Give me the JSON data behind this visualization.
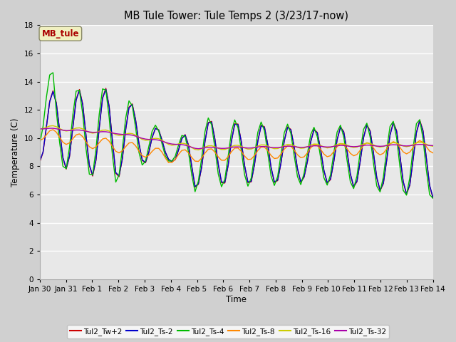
{
  "title": "MB Tule Tower: Tule Temps 2 (3/23/17-now)",
  "xlabel": "Time",
  "ylabel": "Temperature (C)",
  "ylim": [
    0,
    18
  ],
  "yticks": [
    0,
    2,
    4,
    6,
    8,
    10,
    12,
    14,
    16,
    18
  ],
  "legend_label": "MB_tule",
  "series_colors": {
    "Tul2_Tw+2": "#cc0000",
    "Tul2_Ts-2": "#0000cc",
    "Tul2_Ts-4": "#00bb00",
    "Tul2_Ts-8": "#ff8800",
    "Tul2_Ts-16": "#cccc00",
    "Tul2_Ts-32": "#aa00aa"
  },
  "x_labels": [
    "Jan 30",
    "Jan 31",
    "Feb 1",
    "Feb 2",
    "Feb 3",
    "Feb 4",
    "Feb 5",
    "Feb 6",
    "Feb 7",
    "Feb 8",
    "Feb 9",
    "Feb 10",
    "Feb 11",
    "Feb 12",
    "Feb 13",
    "Feb 14"
  ],
  "fig_bg": "#d0d0d0",
  "ax_bg": "#e8e8e8"
}
